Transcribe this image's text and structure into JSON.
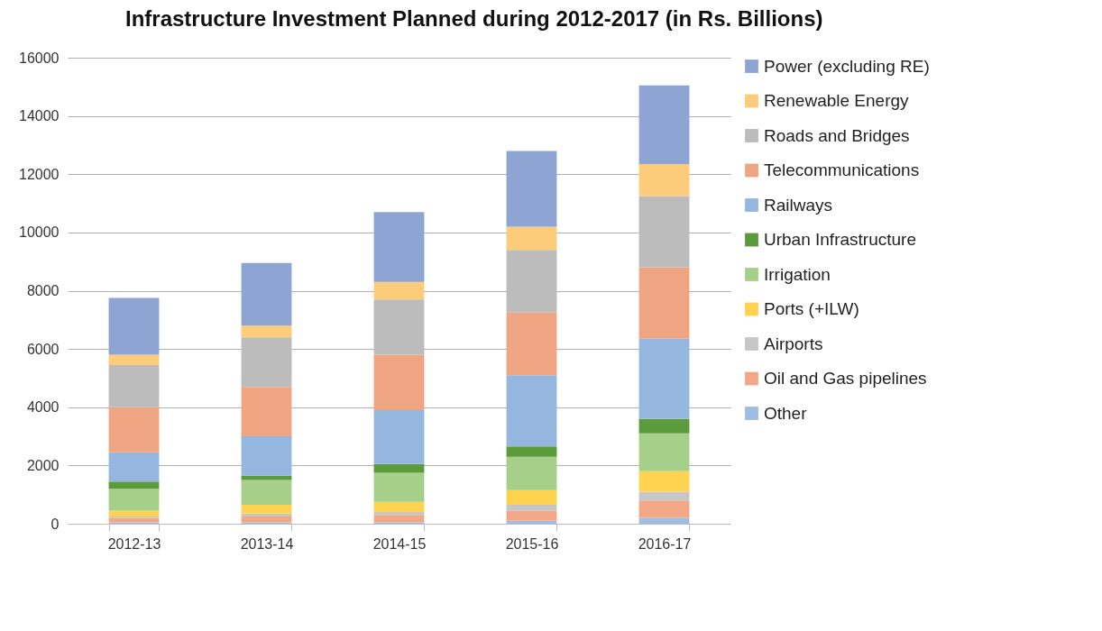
{
  "chart_data": {
    "type": "bar",
    "title": "Infrastructure Investment Planned during 2012-2017 (in Rs. Billions)",
    "stacked": true,
    "categories": [
      "2012-13",
      "2013-14",
      "2014-15",
      "2015-16",
      "2016-17"
    ],
    "ylim": [
      0,
      16000
    ],
    "yticks": [
      0,
      2000,
      4000,
      6000,
      8000,
      10000,
      12000,
      14000,
      16000
    ],
    "grid": "y",
    "legend": "right",
    "series": [
      {
        "name": "Other",
        "color": "#9dbde3",
        "values": [
          50,
          50,
          50,
          100,
          200
        ]
      },
      {
        "name": "Oil and Gas pipelines",
        "color": "#f2a887",
        "values": [
          150,
          200,
          250,
          350,
          600
        ]
      },
      {
        "name": "Airports",
        "color": "#c6c6c6",
        "values": [
          50,
          100,
          100,
          200,
          300
        ]
      },
      {
        "name": "Ports (+ILW)",
        "color": "#ffd34f",
        "values": [
          200,
          300,
          350,
          500,
          700
        ]
      },
      {
        "name": "Irrigation",
        "color": "#a6d08a",
        "values": [
          750,
          850,
          1000,
          1150,
          1300
        ]
      },
      {
        "name": "Urban Infrastructure",
        "color": "#5b9b3b",
        "values": [
          250,
          150,
          300,
          350,
          500
        ]
      },
      {
        "name": "Railways",
        "color": "#95b6de",
        "values": [
          1000,
          1350,
          1850,
          2450,
          2750
        ]
      },
      {
        "name": "Telecommunications",
        "color": "#f0a582",
        "values": [
          1550,
          1700,
          1900,
          2150,
          2450
        ]
      },
      {
        "name": "Roads and Bridges",
        "color": "#bcbcbc",
        "values": [
          1450,
          1700,
          1900,
          2150,
          2450
        ]
      },
      {
        "name": "Renewable Energy",
        "color": "#fdcc7a",
        "values": [
          350,
          400,
          600,
          800,
          1100
        ]
      },
      {
        "name": "Power (excluding RE)",
        "color": "#8ea5d4",
        "values": [
          1950,
          2150,
          2400,
          2600,
          2700
        ]
      }
    ]
  }
}
